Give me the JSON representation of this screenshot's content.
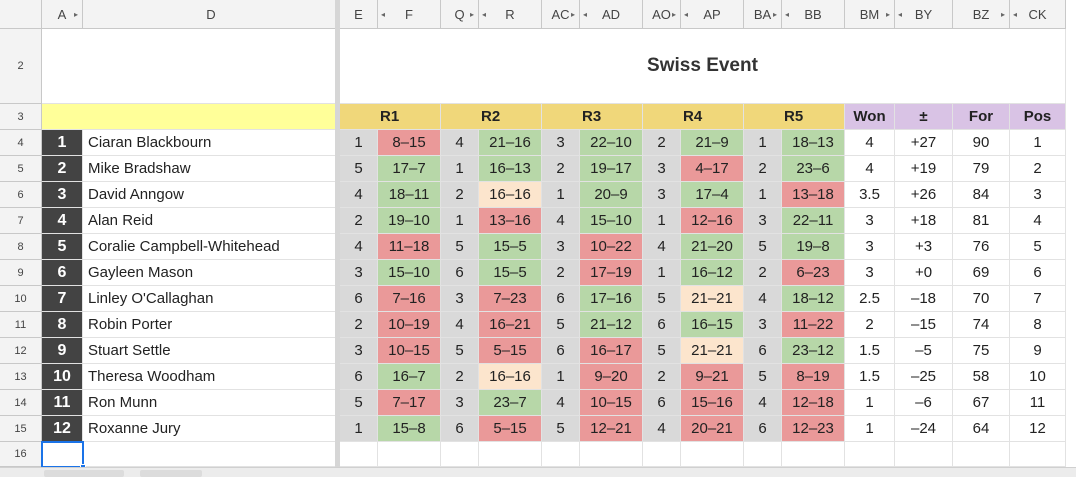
{
  "column_headers": [
    "A",
    "D",
    "E",
    "F",
    "Q",
    "R",
    "AC",
    "AD",
    "AO",
    "AP",
    "BA",
    "BB",
    "BM",
    "BY",
    "BZ",
    "CK"
  ],
  "row_headers": [
    "2",
    "3",
    "4",
    "5",
    "6",
    "7",
    "8",
    "9",
    "10",
    "11",
    "12",
    "13",
    "14",
    "15",
    "16"
  ],
  "title": "Swiss Event",
  "round_headers": [
    "R1",
    "R2",
    "R3",
    "R4",
    "R5"
  ],
  "stat_headers": [
    "Won",
    "±",
    "For",
    "Pos"
  ],
  "players": [
    {
      "num": "1",
      "name": "Ciaran Blackbourn",
      "rounds": [
        [
          "1",
          "8–15"
        ],
        [
          "4",
          "21–16"
        ],
        [
          "3",
          "22–10"
        ],
        [
          "2",
          "21–9"
        ],
        [
          "1",
          "18–13"
        ]
      ],
      "won": "4",
      "diff": "+27",
      "for": "90",
      "pos": "1"
    },
    {
      "num": "2",
      "name": "Mike Bradshaw",
      "rounds": [
        [
          "5",
          "17–7"
        ],
        [
          "1",
          "16–13"
        ],
        [
          "2",
          "19–17"
        ],
        [
          "3",
          "4–17"
        ],
        [
          "2",
          "23–6"
        ]
      ],
      "won": "4",
      "diff": "+19",
      "for": "79",
      "pos": "2"
    },
    {
      "num": "3",
      "name": "David Anngow",
      "rounds": [
        [
          "4",
          "18–11"
        ],
        [
          "2",
          "16–16"
        ],
        [
          "1",
          "20–9"
        ],
        [
          "3",
          "17–4"
        ],
        [
          "1",
          "13–18"
        ]
      ],
      "won": "3.5",
      "diff": "+26",
      "for": "84",
      "pos": "3"
    },
    {
      "num": "4",
      "name": "Alan Reid",
      "rounds": [
        [
          "2",
          "19–10"
        ],
        [
          "1",
          "13–16"
        ],
        [
          "4",
          "15–10"
        ],
        [
          "1",
          "12–16"
        ],
        [
          "3",
          "22–11"
        ]
      ],
      "won": "3",
      "diff": "+18",
      "for": "81",
      "pos": "4"
    },
    {
      "num": "5",
      "name": "Coralie Campbell-Whitehead",
      "rounds": [
        [
          "4",
          "11–18"
        ],
        [
          "5",
          "15–5"
        ],
        [
          "3",
          "10–22"
        ],
        [
          "4",
          "21–20"
        ],
        [
          "5",
          "19–8"
        ]
      ],
      "won": "3",
      "diff": "+3",
      "for": "76",
      "pos": "5"
    },
    {
      "num": "6",
      "name": "Gayleen Mason",
      "rounds": [
        [
          "3",
          "15–10"
        ],
        [
          "6",
          "15–5"
        ],
        [
          "2",
          "17–19"
        ],
        [
          "1",
          "16–12"
        ],
        [
          "2",
          "6–23"
        ]
      ],
      "won": "3",
      "diff": "+0",
      "for": "69",
      "pos": "6"
    },
    {
      "num": "7",
      "name": "Linley O'Callaghan",
      "rounds": [
        [
          "6",
          "7–16"
        ],
        [
          "3",
          "7–23"
        ],
        [
          "6",
          "17–16"
        ],
        [
          "5",
          "21–21"
        ],
        [
          "4",
          "18–12"
        ]
      ],
      "won": "2.5",
      "diff": "–18",
      "for": "70",
      "pos": "7"
    },
    {
      "num": "8",
      "name": "Robin Porter",
      "rounds": [
        [
          "2",
          "10–19"
        ],
        [
          "4",
          "16–21"
        ],
        [
          "5",
          "21–12"
        ],
        [
          "6",
          "16–15"
        ],
        [
          "3",
          "11–22"
        ]
      ],
      "won": "2",
      "diff": "–15",
      "for": "74",
      "pos": "8"
    },
    {
      "num": "9",
      "name": "Stuart Settle",
      "rounds": [
        [
          "3",
          "10–15"
        ],
        [
          "5",
          "5–15"
        ],
        [
          "6",
          "16–17"
        ],
        [
          "5",
          "21–21"
        ],
        [
          "6",
          "23–12"
        ]
      ],
      "won": "1.5",
      "diff": "–5",
      "for": "75",
      "pos": "9"
    },
    {
      "num": "10",
      "name": "Theresa Woodham",
      "rounds": [
        [
          "6",
          "16–7"
        ],
        [
          "2",
          "16–16"
        ],
        [
          "1",
          "9–20"
        ],
        [
          "2",
          "9–21"
        ],
        [
          "5",
          "8–19"
        ]
      ],
      "won": "1.5",
      "diff": "–25",
      "for": "58",
      "pos": "10"
    },
    {
      "num": "11",
      "name": "Ron Munn",
      "rounds": [
        [
          "5",
          "7–17"
        ],
        [
          "3",
          "23–7"
        ],
        [
          "4",
          "10–15"
        ],
        [
          "6",
          "15–16"
        ],
        [
          "4",
          "12–18"
        ]
      ],
      "won": "1",
      "diff": "–6",
      "for": "67",
      "pos": "11"
    },
    {
      "num": "12",
      "name": "Roxanne Jury",
      "rounds": [
        [
          "1",
          "15–8"
        ],
        [
          "6",
          "5–15"
        ],
        [
          "5",
          "12–21"
        ],
        [
          "4",
          "20–21"
        ],
        [
          "6",
          "12–23"
        ]
      ],
      "won": "1",
      "diff": "–24",
      "for": "64",
      "pos": "12"
    }
  ],
  "colors": {
    "win": "#b7d7a8",
    "loss": "#ea9999",
    "draw": "#fce5cd",
    "opponent_cell": "#d9d9d9",
    "round_header_dark": "#f0d77a",
    "round_header_light": "#fdf7a6",
    "stat_header": "#d9c3e5",
    "name_header": "#ffff99",
    "number_cell": "#434343"
  }
}
